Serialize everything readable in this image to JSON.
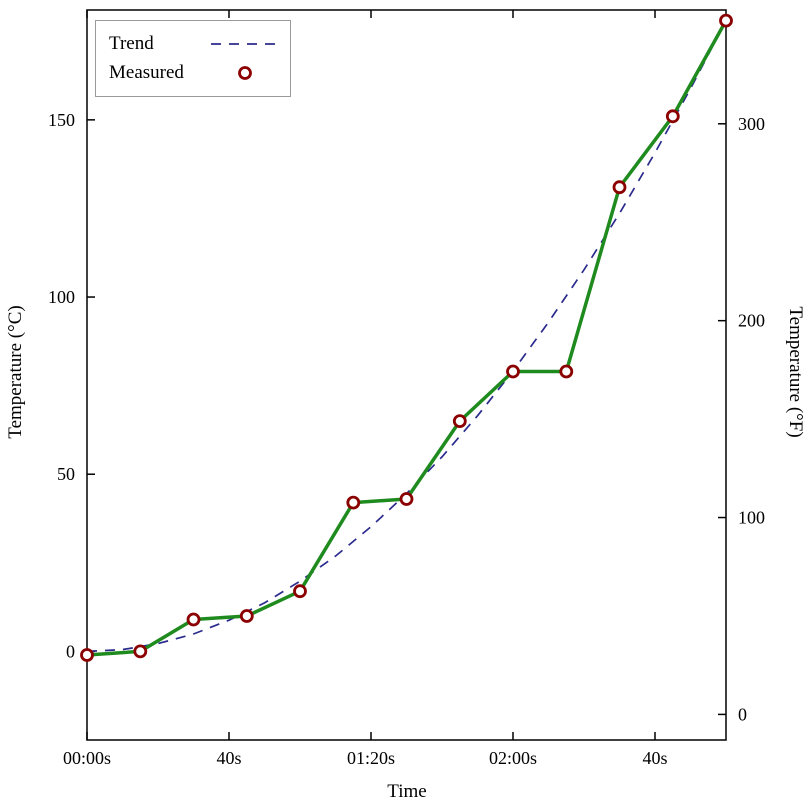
{
  "chart_data": {
    "type": "line",
    "title": "",
    "xlabel": "Time",
    "ylabel_left": "Temperature (°C)",
    "ylabel_right": "Temperature (°F)",
    "x_range_seconds": [
      0,
      180
    ],
    "y_left_range_c": [
      -25,
      181
    ],
    "grid": "off",
    "x_ticks": {
      "positions_s": [
        0,
        40,
        80,
        120,
        160
      ],
      "labels": [
        "00:00s",
        "40s",
        "01:20s",
        "02:00s",
        "40s"
      ]
    },
    "y_left_ticks_c": {
      "positions": [
        0,
        50,
        100,
        150
      ],
      "labels": [
        "0",
        "50",
        "100",
        "150"
      ]
    },
    "y_right_ticks_f": {
      "positions": [
        0,
        100,
        200,
        300
      ],
      "labels": [
        "0",
        "100",
        "200",
        "300"
      ]
    },
    "legend": {
      "position": "top-left",
      "entries": [
        "Trend",
        "Measured"
      ]
    },
    "series": [
      {
        "name": "Trend",
        "style": "dashed-line",
        "color": "#2b2b8e",
        "x_s": [
          0,
          10,
          20,
          30,
          40,
          50,
          60,
          70,
          80,
          90,
          100,
          110,
          120,
          130,
          140,
          150,
          160,
          170,
          180
        ],
        "y_c": [
          0,
          0.5,
          2.2,
          4.9,
          8.8,
          13.7,
          19.8,
          26.9,
          35.2,
          44.5,
          54.9,
          66.5,
          79.1,
          92.9,
          107.7,
          123.6,
          140.7,
          158.8,
          178
        ]
      },
      {
        "name": "Measured",
        "style": "line-markers",
        "line_color": "#1f8b1f",
        "marker_color": "#8b0000",
        "marker_fill": "#ffffff",
        "x_s": [
          0,
          15,
          30,
          45,
          60,
          75,
          90,
          105,
          120,
          135,
          150,
          165,
          180
        ],
        "y_c": [
          -1,
          0,
          9,
          10,
          17,
          42,
          43,
          65,
          79,
          79,
          131,
          151,
          178
        ]
      }
    ],
    "frame_color": "#000000"
  }
}
